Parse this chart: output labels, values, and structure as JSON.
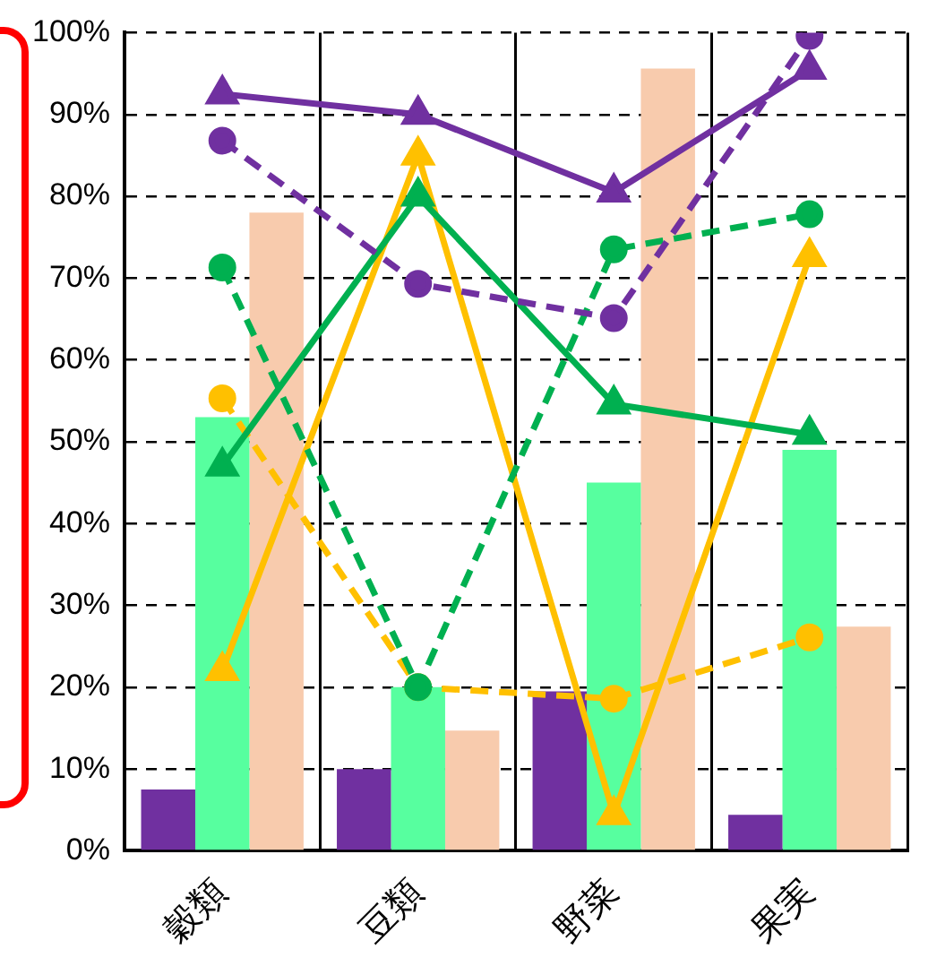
{
  "chart_data": {
    "type": "bar",
    "categories": [
      "穀類",
      "豆類",
      "野菜",
      "果実"
    ],
    "ylim": [
      0,
      100
    ],
    "yticks": [
      {
        "value": 0,
        "label": "0%"
      },
      {
        "value": 10,
        "label": "10%"
      },
      {
        "value": 20,
        "label": "20%"
      },
      {
        "value": 30,
        "label": "30%"
      },
      {
        "value": 40,
        "label": "40%"
      },
      {
        "value": 50,
        "label": "50%"
      },
      {
        "value": 60,
        "label": "60%"
      },
      {
        "value": 70,
        "label": "70%"
      },
      {
        "value": 80,
        "label": "80%"
      },
      {
        "value": 90,
        "label": "90%"
      },
      {
        "value": 100,
        "label": "100%"
      }
    ],
    "grid": true,
    "legend": false,
    "series": [
      {
        "color": "#7030a0",
        "values": [
          7.5,
          10,
          19.5,
          4.4
        ]
      },
      {
        "color": "#57ff9f",
        "values": [
          53,
          20,
          45,
          49
        ]
      },
      {
        "color": "#f8cbad",
        "values": [
          78,
          14.7,
          95.6,
          27.4
        ]
      },
      {
        "type": "line",
        "color": "#7030a0",
        "marker": "triangle",
        "line_style": "solid",
        "values": [
          92.5,
          90,
          80.5,
          95.5
        ]
      },
      {
        "type": "line",
        "color": "#7030a0",
        "marker": "circle",
        "line_style": "dashed",
        "values": [
          86.8,
          69.3,
          65.1,
          99.6
        ]
      },
      {
        "type": "line",
        "color": "#00b050",
        "marker": "triangle",
        "line_style": "solid",
        "values": [
          47,
          80,
          54.6,
          50.9
        ]
      },
      {
        "type": "line",
        "color": "#00b050",
        "marker": "circle",
        "line_style": "dashed",
        "values": [
          71.3,
          20,
          73.5,
          77.8
        ]
      },
      {
        "type": "line",
        "color": "#ffc000",
        "marker": "triangle",
        "line_style": "solid",
        "values": [
          22,
          85,
          4.4,
          72.6
        ]
      },
      {
        "type": "line",
        "color": "#ffc000",
        "marker": "circle",
        "line_style": "dashed",
        "values": [
          55.3,
          20,
          18.6,
          26.1
        ]
      }
    ]
  }
}
